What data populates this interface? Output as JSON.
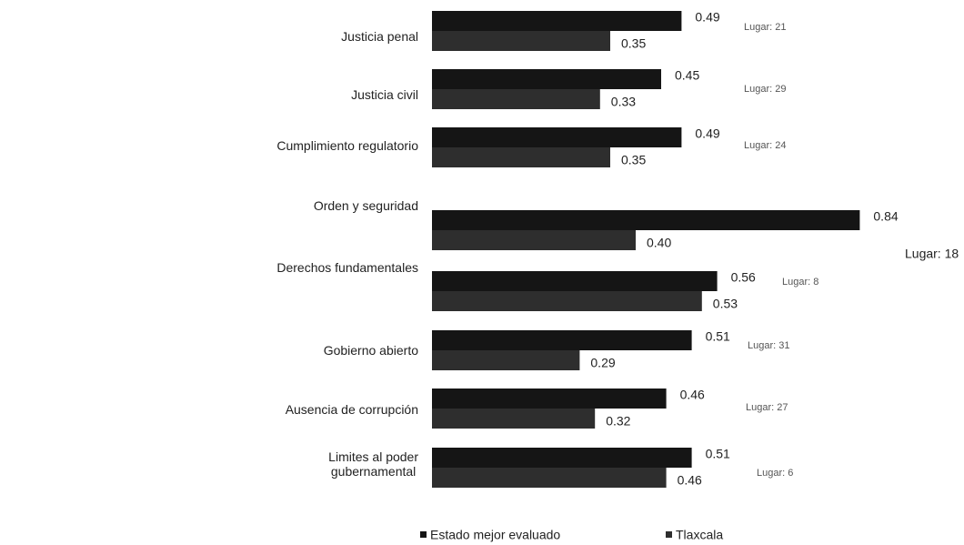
{
  "chart_data": {
    "type": "bar",
    "orientation": "horizontal",
    "categories": [
      "Justicia penal",
      "Justicia civil",
      "Cumplimiento regulatorio",
      "Orden y seguridad",
      "Derechos fundamentales",
      "Gobierno abierto",
      "Ausencia de corrupción",
      "Limites al poder\ngubernamental"
    ],
    "series": [
      {
        "name": "Estado mejor evaluado",
        "color": "#151515",
        "values": [
          0.49,
          0.45,
          0.49,
          0.84,
          0.56,
          0.51,
          0.46,
          0.51
        ],
        "value_labels": [
          "0.49",
          "0.45",
          "0.49",
          "0.84",
          "0.56",
          "0.51",
          "0.46",
          "0.51"
        ]
      },
      {
        "name": "Tlaxcala",
        "color": "#2e2e2e",
        "values": [
          0.35,
          0.33,
          0.35,
          0.4,
          0.53,
          0.29,
          0.32,
          0.46
        ],
        "value_labels": [
          "0.35",
          "0.33",
          "0.35",
          "0.40",
          "0.53",
          "0.29",
          "0.32",
          "0.46"
        ]
      }
    ],
    "annotations": [
      "Lugar: 21",
      "Lugar: 29",
      "Lugar: 24",
      "Lugar: 18",
      "Lugar: 8",
      "Lugar: 31",
      "Lugar: 27",
      "Lugar: 6"
    ]
  }
}
